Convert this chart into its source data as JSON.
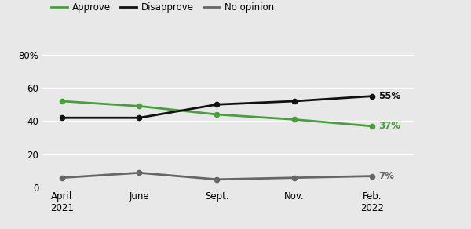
{
  "x_positions": [
    0,
    1,
    2,
    3,
    4
  ],
  "x_labels": [
    "April\n2021",
    "June",
    "Sept.",
    "Nov.",
    "Feb.\n2022"
  ],
  "approve": [
    52,
    49,
    44,
    41,
    37
  ],
  "disapprove": [
    42,
    42,
    50,
    52,
    55
  ],
  "no_opinion": [
    6,
    9,
    5,
    6,
    7
  ],
  "approve_color": "#4a9e3f",
  "disapprove_color": "#111111",
  "no_opinion_color": "#666666",
  "background_color": "#e8e8e8",
  "ylim": [
    0,
    88
  ],
  "yticks": [
    0,
    20,
    40,
    60,
    80
  ],
  "end_labels": [
    "55%",
    "37%",
    "7%"
  ],
  "legend_labels": [
    "Approve",
    "Disapprove",
    "No opinion"
  ],
  "marker": "o",
  "marker_size": 4.5,
  "line_width": 2.0
}
